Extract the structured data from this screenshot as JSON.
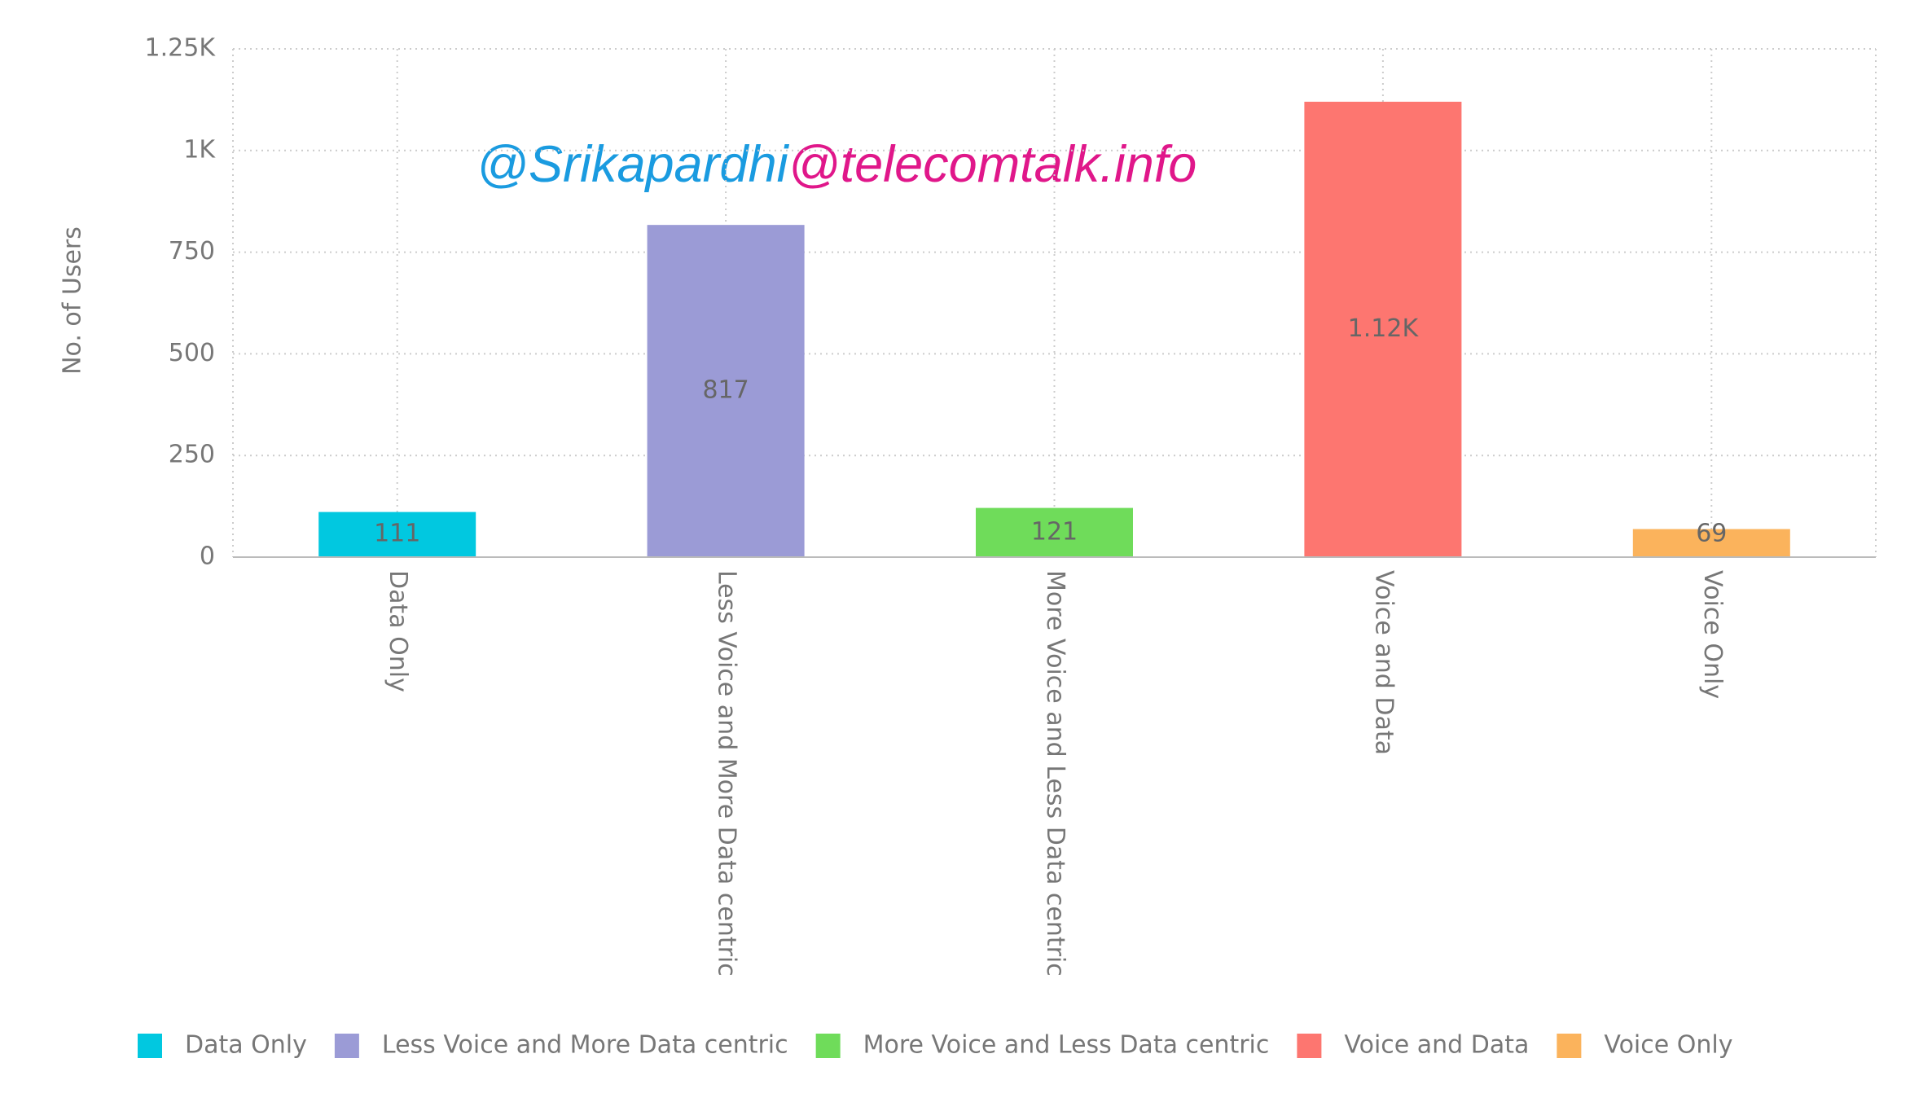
{
  "chart_data": {
    "type": "bar",
    "y_label": "No. of Users",
    "categories": [
      "Data Only",
      "Less Voice and More Data centric",
      "More Voice and Less Data centric",
      "Voice and Data",
      "Voice Only"
    ],
    "values": [
      111,
      817,
      121,
      1120,
      69
    ],
    "value_labels": [
      "111",
      "817",
      "121",
      "1.12K",
      "69"
    ],
    "colors": [
      "#01c8e0",
      "#9b9bd6",
      "#6fdc5a",
      "#fd7670",
      "#fbb35c"
    ],
    "ylim": [
      0,
      1250
    ],
    "yticks": [
      0,
      250,
      500,
      750,
      {
        "value": 1000,
        "label": "1K"
      },
      {
        "value": 1250,
        "label": "1.25K"
      }
    ],
    "grid": true,
    "legend": "bottom",
    "annotations": [
      {
        "text": "@Srikapardhi",
        "color": "#1a9be0"
      },
      {
        "text": "@telecomtalk.info",
        "color": "#e0178a"
      }
    ]
  }
}
